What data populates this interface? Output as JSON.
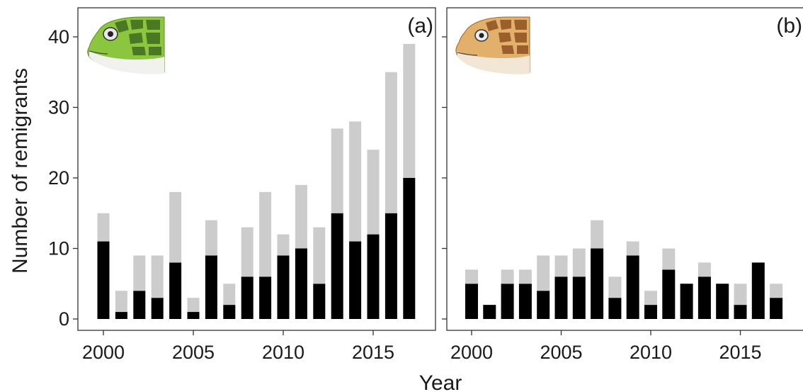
{
  "figure": {
    "ylabel": "Number of remigrants",
    "xlabel": "Year"
  },
  "chart_data": [
    {
      "type": "bar",
      "panel_label": "(a)",
      "stacked": true,
      "x": [
        2000,
        2001,
        2002,
        2003,
        2004,
        2005,
        2006,
        2007,
        2008,
        2009,
        2010,
        2011,
        2012,
        2013,
        2014,
        2015,
        2016,
        2017
      ],
      "series": [
        {
          "color": "#000000",
          "values": [
            11,
            1,
            4,
            3,
            8,
            1,
            9,
            2,
            6,
            6,
            9,
            10,
            5,
            15,
            11,
            12,
            15,
            20
          ]
        },
        {
          "color": "#cccccc",
          "values": [
            4,
            3,
            5,
            6,
            10,
            2,
            5,
            3,
            7,
            12,
            3,
            9,
            8,
            12,
            17,
            12,
            20,
            19
          ]
        }
      ],
      "totals": [
        15,
        4,
        9,
        9,
        18,
        3,
        14,
        5,
        13,
        18,
        12,
        19,
        13,
        27,
        28,
        24,
        35,
        39
      ],
      "ylim": [
        0,
        43
      ],
      "yticks": [
        0,
        10,
        20,
        30,
        40
      ],
      "xticks": [
        2000,
        2005,
        2010,
        2015
      ],
      "grid": false,
      "icon": "green-turtle-head-icon"
    },
    {
      "type": "bar",
      "panel_label": "(b)",
      "stacked": true,
      "x": [
        2000,
        2001,
        2002,
        2003,
        2004,
        2005,
        2006,
        2007,
        2008,
        2009,
        2010,
        2011,
        2012,
        2013,
        2014,
        2015,
        2016,
        2017
      ],
      "series": [
        {
          "color": "#000000",
          "values": [
            5,
            2,
            5,
            5,
            4,
            6,
            6,
            10,
            3,
            9,
            2,
            7,
            5,
            6,
            5,
            2,
            8,
            3
          ]
        },
        {
          "color": "#cccccc",
          "values": [
            2,
            0,
            2,
            2,
            5,
            3,
            4,
            4,
            3,
            2,
            2,
            3,
            0,
            2,
            0,
            3,
            0,
            2
          ]
        }
      ],
      "totals": [
        7,
        2,
        7,
        7,
        9,
        9,
        10,
        14,
        6,
        11,
        4,
        10,
        5,
        8,
        5,
        5,
        8,
        5
      ],
      "ylim": [
        0,
        43
      ],
      "yticks": [
        0,
        10,
        20,
        30,
        40
      ],
      "xticks": [
        2000,
        2005,
        2010,
        2015
      ],
      "grid": false,
      "icon": "loggerhead-turtle-head-icon"
    }
  ]
}
